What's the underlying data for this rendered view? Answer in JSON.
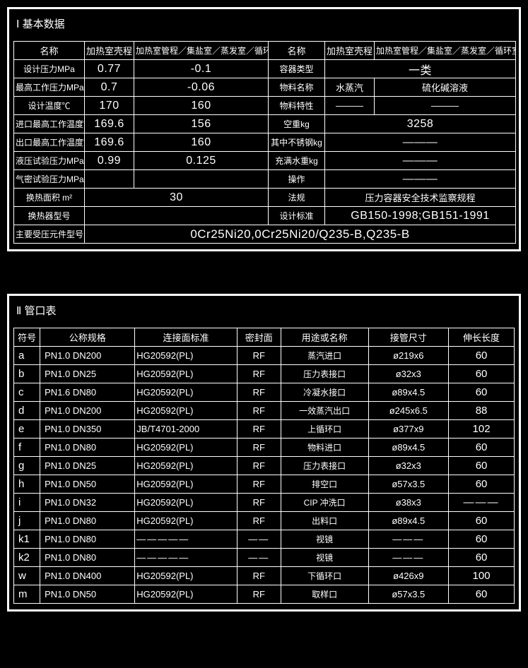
{
  "basic": {
    "title": "Ⅰ 基本数据",
    "head": {
      "name": "名称",
      "shell": "加热室壳程",
      "tube": "加热室管程／集盐室／蒸发室／循环室"
    },
    "rows_left": [
      {
        "label": "设计压力MPa",
        "shell": "0.77",
        "tube": "-0.1"
      },
      {
        "label": "最高工作压力MPa",
        "shell": "0.7",
        "tube": "-0.06"
      },
      {
        "label": "设计温度℃",
        "shell": "170",
        "tube": "160"
      },
      {
        "label": "进口最高工作温度℃",
        "shell": "169.6",
        "tube": "156"
      },
      {
        "label": "出口最高工作温度℃",
        "shell": "169.6",
        "tube": "160"
      },
      {
        "label": "液压试验压力MPa",
        "shell": "0.99",
        "tube": "0.125"
      },
      {
        "label": "气密试验压力MPa",
        "shell": "",
        "tube": ""
      }
    ],
    "rows_right": [
      {
        "label": "容器类型",
        "shell": "",
        "tube": "一类",
        "merge": true
      },
      {
        "label": "物料名称",
        "shell": "水蒸汽",
        "tube": "硫化碱溶液"
      },
      {
        "label": "物料特性",
        "shell": "———",
        "tube": "———"
      },
      {
        "label": "空重kg",
        "shell": "",
        "tube": "3258",
        "merge": true
      },
      {
        "label": "其中不锈钢kg",
        "shell": "",
        "tube": "———",
        "merge": true
      },
      {
        "label": "充满水重kg",
        "shell": "",
        "tube": "———",
        "merge": true
      },
      {
        "label": "操作",
        "shell": "",
        "tube": "———",
        "merge": true
      }
    ],
    "area_row": {
      "label": "换热面积 m²",
      "value": "30",
      "r_label": "法规",
      "r_value": "压力容器安全技术监察规程"
    },
    "model_row": {
      "label": "换热器型号",
      "value": "",
      "r_label": "设计标准",
      "r_value": "GB150-1998;GB151-1991"
    },
    "comp_row": {
      "label": "主要受压元件型号",
      "value": "0Cr25Ni20,0Cr25Ni20/Q235-B,Q235-B"
    }
  },
  "ports": {
    "title": "Ⅱ 管口表",
    "head": {
      "sym": "符号",
      "spec": "公称规格",
      "std": "连接面标准",
      "seal": "密封面",
      "use": "用途或名称",
      "conn": "接管尺寸",
      "ext": "伸长长度"
    },
    "rows": [
      {
        "sym": "a",
        "spec": "PN1.0  DN200",
        "std": "HG20592(PL)",
        "seal": "RF",
        "use": "蒸汽进口",
        "conn": "ø219x6",
        "ext": "60"
      },
      {
        "sym": "b",
        "spec": "PN1.0  DN25",
        "std": "HG20592(PL)",
        "seal": "RF",
        "use": "压力表接口",
        "conn": "ø32x3",
        "ext": "60"
      },
      {
        "sym": "c",
        "spec": "PN1.6  DN80",
        "std": "HG20592(PL)",
        "seal": "RF",
        "use": "冷凝水接口",
        "conn": "ø89x4.5",
        "ext": "60"
      },
      {
        "sym": "d",
        "spec": "PN1.0  DN200",
        "std": "HG20592(PL)",
        "seal": "RF",
        "use": "一效蒸汽出口",
        "conn": "ø245x6.5",
        "ext": "88"
      },
      {
        "sym": "e",
        "spec": "PN1.0  DN350",
        "std": "JB/T4701-2000",
        "seal": "RF",
        "use": "上循环口",
        "conn": "ø377x9",
        "ext": "102"
      },
      {
        "sym": "f",
        "spec": "PN1.0  DN80",
        "std": "HG20592(PL)",
        "seal": "RF",
        "use": "物料进口",
        "conn": "ø89x4.5",
        "ext": "60"
      },
      {
        "sym": "g",
        "spec": "PN1.0  DN25",
        "std": "HG20592(PL)",
        "seal": "RF",
        "use": "压力表接口",
        "conn": "ø32x3",
        "ext": "60"
      },
      {
        "sym": "h",
        "spec": "PN1.0  DN50",
        "std": "HG20592(PL)",
        "seal": "RF",
        "use": "排空口",
        "conn": "ø57x3.5",
        "ext": "60"
      },
      {
        "sym": "i",
        "spec": "PN1.0  DN32",
        "std": "HG20592(PL)",
        "seal": "RF",
        "use": "CIP 冲洗口",
        "conn": "ø38x3",
        "ext": "———"
      },
      {
        "sym": "j",
        "spec": "PN1.0  DN80",
        "std": "HG20592(PL)",
        "seal": "RF",
        "use": "出料口",
        "conn": "ø89x4.5",
        "ext": "60"
      },
      {
        "sym": "k1",
        "spec": "PN1.0  DN80",
        "std": "—————",
        "seal": "——",
        "use": "视镜",
        "conn": "———",
        "ext": "60"
      },
      {
        "sym": "k2",
        "spec": "PN1.0  DN80",
        "std": "—————",
        "seal": "——",
        "use": "视镜",
        "conn": "———",
        "ext": "60"
      },
      {
        "sym": "w",
        "spec": "PN1.0  DN400",
        "std": "HG20592(PL)",
        "seal": "RF",
        "use": "下循环口",
        "conn": "ø426x9",
        "ext": "100"
      },
      {
        "sym": "m",
        "spec": "PN1.0  DN50",
        "std": "HG20592(PL)",
        "seal": "RF",
        "use": "取样口",
        "conn": "ø57x3.5",
        "ext": "60"
      }
    ]
  }
}
